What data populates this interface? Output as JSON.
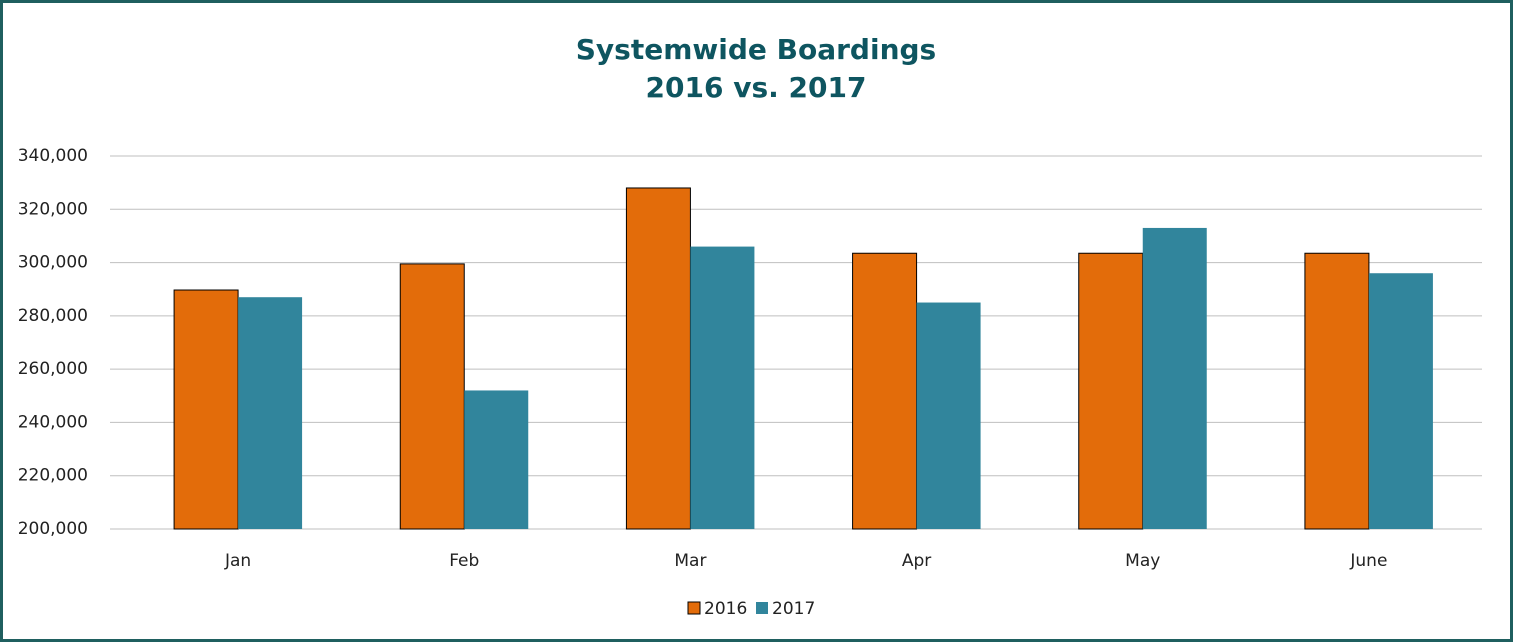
{
  "chart_data": {
    "type": "bar",
    "title": [
      "Systemwide Boardings",
      "2016 vs. 2017"
    ],
    "categories": [
      "Jan",
      "Feb",
      "Mar",
      "Apr",
      "May",
      "June"
    ],
    "series": [
      {
        "name": "2016",
        "color": "#e36c0a",
        "values": [
          289700,
          299500,
          328000,
          303500,
          303500,
          303500
        ]
      },
      {
        "name": "2017",
        "color": "#31859c",
        "values": [
          287000,
          252000,
          306000,
          285000,
          313000,
          296000
        ]
      }
    ],
    "ylim": [
      200000,
      340000
    ],
    "yticks": [
      {
        "value": 200000,
        "label": "200,000"
      },
      {
        "value": 220000,
        "label": "220,000"
      },
      {
        "value": 240000,
        "label": "240,000"
      },
      {
        "value": 260000,
        "label": "260,000"
      },
      {
        "value": 280000,
        "label": "280,000"
      },
      {
        "value": 300000,
        "label": "300,000"
      },
      {
        "value": 320000,
        "label": "320,000"
      },
      {
        "value": 340000,
        "label": "340,000"
      }
    ],
    "grid": true,
    "legend": "bottom"
  }
}
